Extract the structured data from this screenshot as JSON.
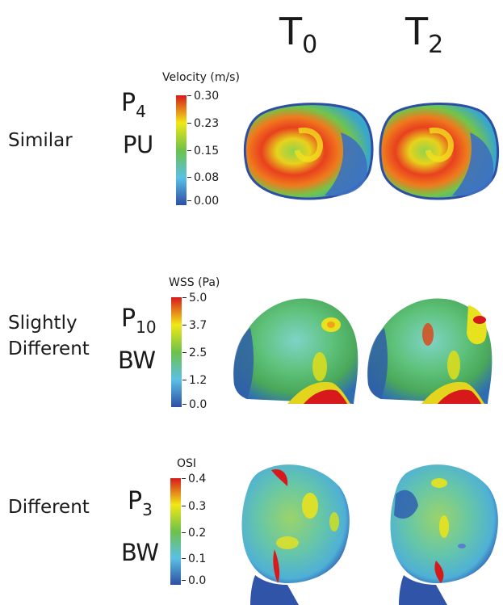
{
  "columns": [
    {
      "label": "T",
      "sub": "0"
    },
    {
      "label": "T",
      "sub": "2"
    }
  ],
  "rows": [
    {
      "category": "Similar",
      "patient": {
        "label": "P",
        "sub": "4"
      },
      "region": "PU",
      "colorbar": {
        "title": "Velocity (m/s)",
        "ticks": [
          "0.30",
          "0.23",
          "0.15",
          "0.08",
          "0.00"
        ]
      }
    },
    {
      "category_lines": [
        "Slightly",
        "Different"
      ],
      "patient": {
        "label": "P",
        "sub": "10"
      },
      "region": "BW",
      "colorbar": {
        "title": "WSS (Pa)",
        "ticks": [
          "5.0",
          "3.7",
          "2.5",
          "1.2",
          "0.0"
        ]
      }
    },
    {
      "category": "Different",
      "patient": {
        "label": "P",
        "sub": "3"
      },
      "region": "BW",
      "colorbar": {
        "title": "OSI",
        "ticks": [
          "0.4",
          "0.3",
          "0.2",
          "0.1",
          "0.0"
        ]
      }
    }
  ],
  "colors": {
    "scale": [
      "#d7191c",
      "#f1e816",
      "#6cc24a",
      "#5bc0e6",
      "#2c4fa3"
    ]
  }
}
